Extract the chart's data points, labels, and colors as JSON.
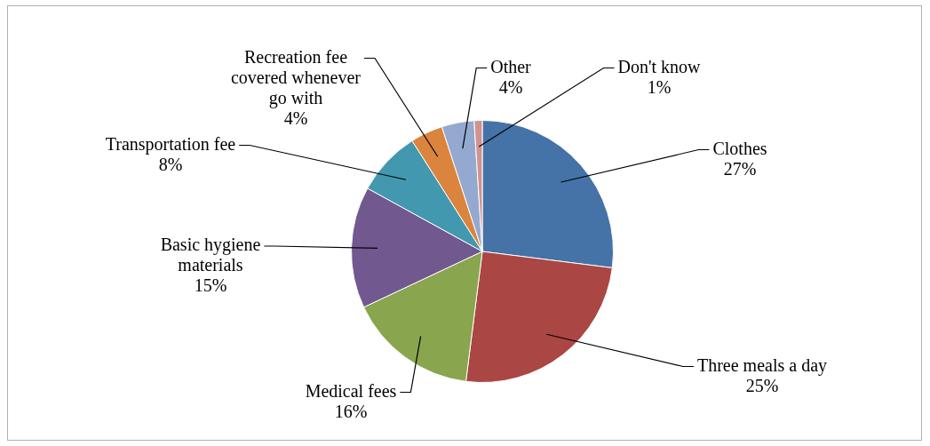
{
  "chart_data": {
    "type": "pie",
    "categories": [
      "Clothes",
      "Three meals a day",
      "Medical fees",
      "Basic hygiene materials",
      "Transportation fee",
      "Recreation fee covered whenever go with",
      "Other",
      "Don't know"
    ],
    "values": [
      27,
      25,
      16,
      15,
      8,
      4,
      4,
      1
    ],
    "colors": [
      "#4572a7",
      "#aa4643",
      "#89a54e",
      "#71588f",
      "#4198af",
      "#db843d",
      "#93a9cf",
      "#d19392"
    ],
    "value_labels": [
      "27%",
      "25%",
      "16%",
      "15%",
      "8%",
      "4%",
      "4%",
      "1%"
    ],
    "legend": false
  }
}
